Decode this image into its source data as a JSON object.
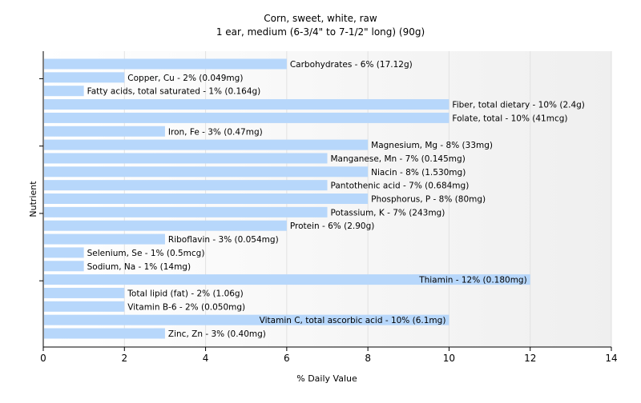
{
  "chart_data": {
    "type": "bar",
    "orientation": "horizontal",
    "title": "Corn, sweet, white, raw",
    "subtitle": "1 ear, medium (6-3/4\" to 7-1/2\" long) (90g)",
    "xlabel": "% Daily Value",
    "ylabel": "Nutrient",
    "xlim": [
      0,
      14
    ],
    "xticks": [
      0,
      2,
      4,
      6,
      8,
      10,
      12,
      14
    ],
    "grid": true,
    "bar_color": "#b7d7fb",
    "background": "#ffffff",
    "bars": [
      {
        "label": "Carbohydrates - 6% (17.12g)",
        "value": 6
      },
      {
        "label": "Copper, Cu - 2% (0.049mg)",
        "value": 2
      },
      {
        "label": "Fatty acids, total saturated - 1% (0.164g)",
        "value": 1
      },
      {
        "label": "Fiber, total dietary - 10% (2.4g)",
        "value": 10
      },
      {
        "label": "Folate, total - 10% (41mcg)",
        "value": 10
      },
      {
        "label": "Iron, Fe - 3% (0.47mg)",
        "value": 3
      },
      {
        "label": "Magnesium, Mg - 8% (33mg)",
        "value": 8
      },
      {
        "label": "Manganese, Mn - 7% (0.145mg)",
        "value": 7
      },
      {
        "label": "Niacin - 8% (1.530mg)",
        "value": 8
      },
      {
        "label": "Pantothenic acid - 7% (0.684mg)",
        "value": 7
      },
      {
        "label": "Phosphorus, P - 8% (80mg)",
        "value": 8
      },
      {
        "label": "Potassium, K - 7% (243mg)",
        "value": 7
      },
      {
        "label": "Protein - 6% (2.90g)",
        "value": 6
      },
      {
        "label": "Riboflavin - 3% (0.054mg)",
        "value": 3
      },
      {
        "label": "Selenium, Se - 1% (0.5mcg)",
        "value": 1
      },
      {
        "label": "Sodium, Na - 1% (14mg)",
        "value": 1
      },
      {
        "label": "Thiamin - 12% (0.180mg)",
        "value": 12,
        "label_inside": true
      },
      {
        "label": "Total lipid (fat) - 2% (1.06g)",
        "value": 2
      },
      {
        "label": "Vitamin B-6 - 2% (0.050mg)",
        "value": 2
      },
      {
        "label": "Vitamin C, total ascorbic acid - 10% (6.1mg)",
        "value": 10,
        "label_inside": true
      },
      {
        "label": "Zinc, Zn - 3% (0.40mg)",
        "value": 3
      }
    ]
  }
}
